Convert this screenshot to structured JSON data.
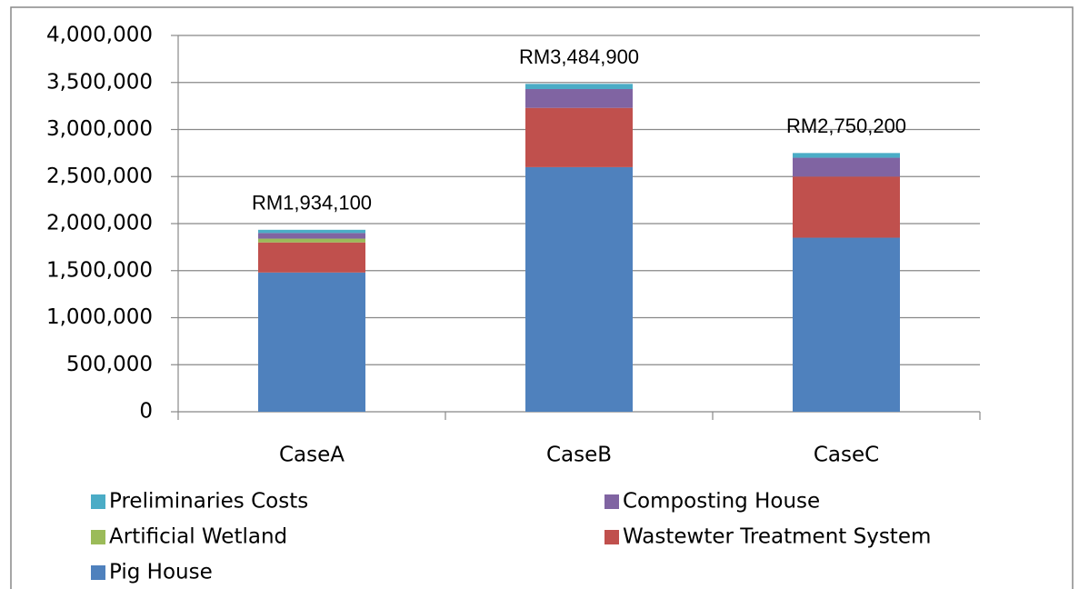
{
  "chart_data": {
    "type": "stacked_bar",
    "categories": [
      "CaseA",
      "CaseB",
      "CaseC"
    ],
    "series": [
      {
        "name": "Pig House",
        "color": "#4f81bd",
        "values": [
          1480000,
          2600000,
          1850000
        ]
      },
      {
        "name": "Wastewter Treatment System",
        "color": "#c0504d",
        "values": [
          320000,
          630000,
          650000
        ]
      },
      {
        "name": "Artificial Wetland",
        "color": "#9bbb59",
        "values": [
          40000,
          0,
          0
        ]
      },
      {
        "name": "Composting House",
        "color": "#8064a2",
        "values": [
          60000,
          200000,
          200000
        ]
      },
      {
        "name": "Preliminaries Costs",
        "color": "#4bacc6",
        "values": [
          34100,
          54900,
          50200
        ]
      }
    ],
    "total_labels": [
      "RM1,934,100",
      "RM3,484,900",
      "RM2,750,200"
    ],
    "ylim": [
      0,
      4000000
    ],
    "yticks": [
      0,
      {
        "value": 500000,
        "label": "500,000"
      },
      {
        "value": 1000000,
        "label": "1,000,000"
      },
      {
        "value": 1500000,
        "label": "1,500,000"
      },
      {
        "value": 2000000,
        "label": "2,000,000"
      },
      {
        "value": 2500000,
        "label": "2,500,000"
      },
      {
        "value": 3000000,
        "label": "3,000,000"
      },
      {
        "value": 3500000,
        "label": "3,500,000"
      },
      {
        "value": 4000000,
        "label": "4,000,000"
      }
    ],
    "grid": true,
    "legend": "bottom"
  }
}
